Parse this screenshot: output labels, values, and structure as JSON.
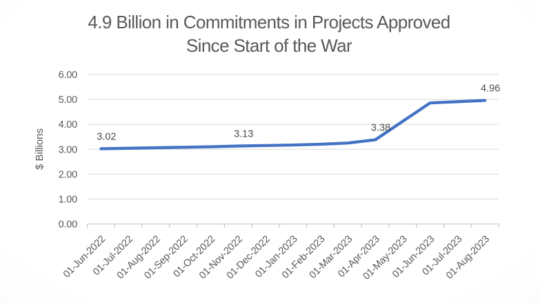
{
  "chart_data": {
    "type": "line",
    "title": "4.9 Billion in Commitments in Projects Approved Since Start of the War",
    "title_lines": [
      "4.9 Billion in Commitments in Projects Approved",
      "Since Start of the War"
    ],
    "ylabel": "$ Billions",
    "xlabel": "",
    "ylim": [
      0,
      6
    ],
    "ytick_labels": [
      "0.00",
      "1.00",
      "2.00",
      "3.00",
      "4.00",
      "5.00",
      "6.00"
    ],
    "grid": true,
    "legend": false,
    "categories": [
      "01-Jun-2022",
      "01-Jul-2022",
      "01-Aug-2022",
      "01-Sep-2022",
      "01-Oct-2022",
      "01-Nov-2022",
      "01-Dec-2022",
      "01-Jan-2023",
      "01-Feb-2023",
      "01-Mar-2023",
      "01-Apr-2023",
      "01-May-2023",
      "01-Jun-2023",
      "01-Jul-2023",
      "01-Aug-2023"
    ],
    "series": [
      {
        "color": "#4472C4",
        "values": [
          3.02,
          3.04,
          3.06,
          3.08,
          3.1,
          3.13,
          3.15,
          3.17,
          3.2,
          3.25,
          3.38,
          4.12,
          4.86,
          4.91,
          4.96
        ]
      }
    ],
    "data_labels": [
      {
        "index": 0,
        "text": "3.02"
      },
      {
        "index": 5,
        "text": "3.13"
      },
      {
        "index": 10,
        "text": "3.38"
      },
      {
        "index": 14,
        "text": "4.96"
      }
    ],
    "colors": {
      "line": "#4472C4",
      "gridline": "#d9d9d9",
      "axis": "#bfbfbf",
      "tick_text": "#595959",
      "data_label_text": "#4c4c4c",
      "title_text": "#595959"
    }
  }
}
